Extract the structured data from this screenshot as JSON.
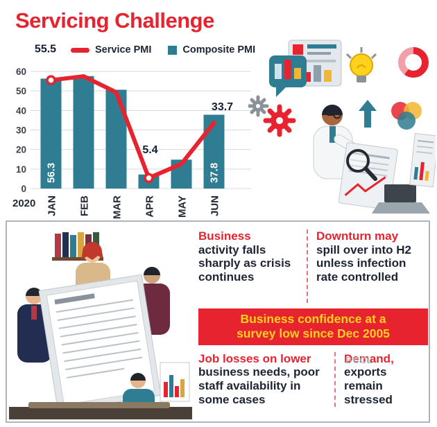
{
  "header": {
    "title": "Servicing Challenge"
  },
  "chart_data": {
    "type": "combo",
    "title": "Servicing Challenge",
    "categories": [
      "JAN",
      "FEB",
      "MAR",
      "APR",
      "MAY",
      "JUN"
    ],
    "year_label": "2020",
    "ylim": [
      0,
      60
    ],
    "yticks": [
      0,
      10,
      20,
      30,
      40,
      50,
      60
    ],
    "grid": "horizontal",
    "legend_position": "top",
    "series": [
      {
        "name": "Service PMI",
        "type": "line",
        "color": "#e6232f",
        "values": [
          55.5,
          57.5,
          49.3,
          5.4,
          12.6,
          33.7
        ]
      },
      {
        "name": "Composite PMI",
        "type": "bar",
        "color": "#2e7d92",
        "values": [
          56.3,
          57.6,
          50.6,
          7.2,
          14.8,
          37.8
        ]
      }
    ],
    "markers": [
      0,
      3
    ],
    "point_labels": [
      {
        "index": 0,
        "text": "55.5"
      },
      {
        "index": 3,
        "text": "5.4"
      },
      {
        "index": 5,
        "text": "33.7"
      }
    ],
    "bar_labels": [
      {
        "index": 0,
        "text": "56.3"
      },
      {
        "index": 5,
        "text": "37.8"
      }
    ]
  },
  "panel": {
    "business": {
      "lead": "Business",
      "rest": "activity falls sharply as crisis continues"
    },
    "downturn": {
      "lead": "Downturn may",
      "rest": "spill over into H2 unless infection rate controlled"
    },
    "banner": {
      "line1": "Business confidence at a",
      "line2": "survey low since Dec 2005"
    },
    "jobs": {
      "lead": "Job losses on lower",
      "rest": "business needs, poor staff availability in some cases"
    },
    "demand": {
      "lead": "Demand,",
      "rest": "exports remain stressed"
    },
    "watermark": "BCCL"
  },
  "colors": {
    "accent_red": "#e6232f",
    "bar_teal": "#2e7d92",
    "banner_text": "#ffd21e",
    "ink_navy": "#1d2433"
  }
}
